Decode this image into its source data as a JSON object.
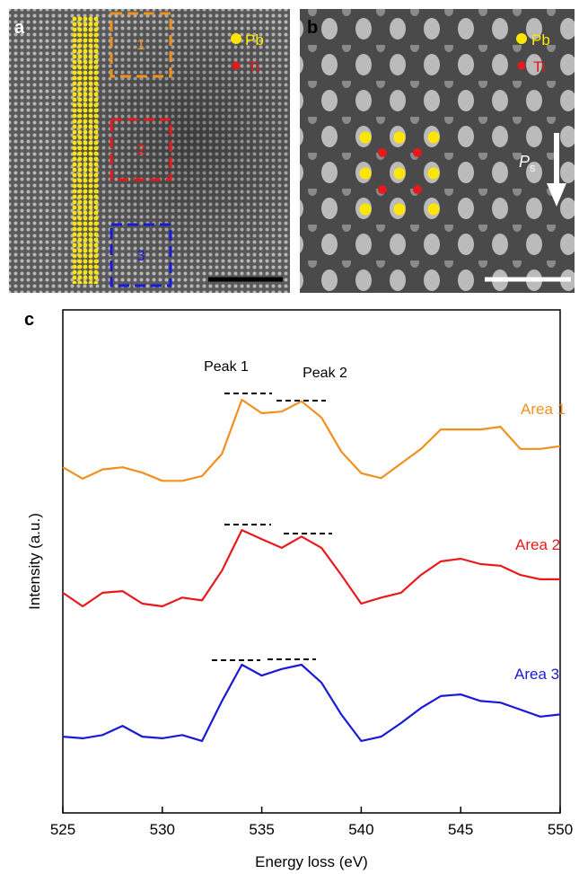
{
  "figure": {
    "panel_labels": [
      "a",
      "b",
      "c"
    ],
    "legend": [
      "Pb",
      "Ti"
    ],
    "areas": [
      "1",
      "2",
      "3"
    ],
    "polarization": {
      "symbol": "P",
      "subscript": "s"
    }
  },
  "chart_data": {
    "type": "line",
    "xlabel": "Energy loss (eV)",
    "ylabel": "Intensity (a.u.)",
    "annotations": [
      "Peak 1",
      "Peak 2"
    ],
    "x": [
      525,
      526,
      527,
      528,
      529,
      530,
      531,
      532,
      533,
      534,
      535,
      536,
      537,
      538,
      539,
      540,
      541,
      542,
      543,
      544,
      545,
      546,
      547,
      548,
      549,
      550
    ],
    "series": [
      {
        "name": "Area 1",
        "color": "#f0901e",
        "values": [
          70.9,
          68.8,
          70.5,
          70.9,
          69.9,
          68.4,
          68.4,
          69.3,
          73.4,
          83.4,
          80.9,
          81.2,
          83.1,
          80.1,
          73.8,
          69.8,
          68.9,
          71.6,
          74.3,
          77.9,
          77.9,
          77.9,
          78.4,
          74.3,
          74.3,
          74.8
        ]
      },
      {
        "name": "Area 2",
        "color": "#e8191a",
        "values": [
          47.7,
          45.2,
          47.7,
          48.0,
          45.7,
          45.2,
          46.8,
          46.3,
          51.8,
          59.3,
          57.6,
          56.0,
          58.1,
          56.0,
          51.0,
          45.7,
          46.8,
          47.7,
          51.0,
          53.5,
          54.0,
          53.0,
          52.7,
          51.0,
          50.2,
          50.2
        ]
      },
      {
        "name": "Area 3",
        "color": "#1a1ad6",
        "values": [
          21.1,
          20.8,
          21.4,
          23.1,
          21.1,
          20.8,
          21.4,
          20.3,
          27.7,
          34.4,
          32.4,
          33.6,
          34.4,
          31.1,
          25.2,
          20.3,
          21.1,
          23.6,
          26.4,
          28.6,
          28.9,
          27.7,
          27.4,
          26.1,
          24.8,
          25.2
        ]
      }
    ],
    "xlim": [
      525,
      550
    ],
    "xticks": [
      525,
      530,
      535,
      540,
      545,
      550
    ],
    "ylim": [
      7,
      100
    ]
  }
}
